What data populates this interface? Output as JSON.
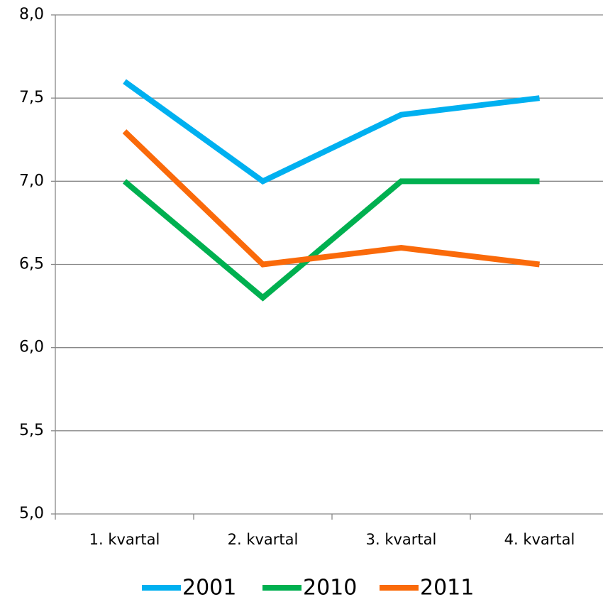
{
  "chart_data": {
    "type": "line",
    "categories": [
      "1. kvartal",
      "2. kvartal",
      "3. kvartal",
      "4. kvartal"
    ],
    "series": [
      {
        "name": "2001",
        "color": "#00b0f0",
        "values": [
          7.6,
          7.0,
          7.4,
          7.5
        ]
      },
      {
        "name": "2010",
        "color": "#00b050",
        "values": [
          7.0,
          6.3,
          7.0,
          7.0
        ]
      },
      {
        "name": "2011",
        "color": "#fa6a0a",
        "values": [
          7.3,
          6.5,
          6.6,
          6.5
        ]
      }
    ],
    "ylim": [
      5,
      8
    ],
    "yticks": [
      {
        "value": 5,
        "label": "5,0"
      },
      {
        "value": 5.5,
        "label": "5,5"
      },
      {
        "value": 6,
        "label": "6,0"
      },
      {
        "value": 6.5,
        "label": "6,5"
      },
      {
        "value": 7,
        "label": "7,0"
      },
      {
        "value": 7.5,
        "label": "7,5"
      },
      {
        "value": 8,
        "label": "8,0"
      }
    ],
    "grid": true,
    "legend": "bottom"
  }
}
